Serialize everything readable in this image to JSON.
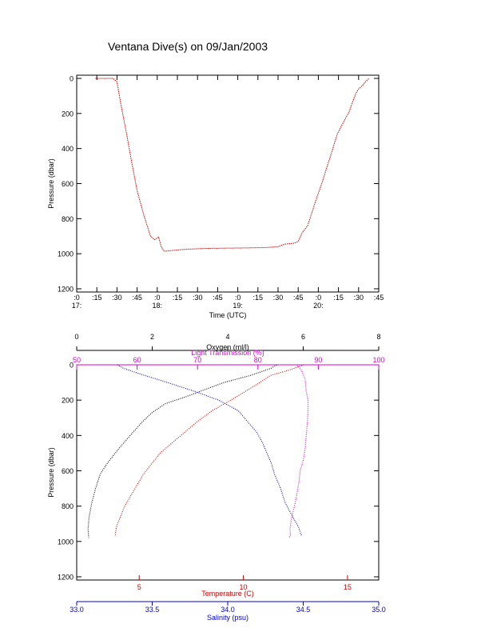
{
  "title": "Ventana Dive(s) on 09/Jan/2003",
  "colors": {
    "axis": "#000000",
    "temperature": "#d00000",
    "salinity": "#0000cc",
    "oxygen": "#000000",
    "light_transmission": "#dd00dd",
    "pressure_trace": "#cc0000"
  },
  "chart_data": [
    {
      "type": "line",
      "title": "Ventana Dive(s) on 09/Jan/2003",
      "xlabel": "Time (UTC)",
      "ylabel": "Pressure (dbar)",
      "x_unit": "minutes since 17:00 UTC",
      "xlim": [
        0,
        225
      ],
      "ylim": [
        1200,
        0
      ],
      "x_ticks": [
        0,
        15,
        30,
        45,
        60,
        75,
        90,
        105,
        120,
        135,
        150,
        165,
        180,
        195,
        210,
        225
      ],
      "x_tick_labels": [
        ":0",
        ":15",
        ":30",
        ":45",
        ":0",
        ":15",
        ":30",
        ":45",
        ":0",
        ":15",
        ":30",
        ":45",
        ":0",
        ":15",
        ":30",
        ":45"
      ],
      "x_hour_labels": [
        {
          "x": 0,
          "label": "17:"
        },
        {
          "x": 60,
          "label": "18:"
        },
        {
          "x": 120,
          "label": "19:"
        },
        {
          "x": 180,
          "label": "20:"
        }
      ],
      "y_ticks": [
        0,
        200,
        400,
        600,
        800,
        1000,
        1200
      ],
      "series": [
        {
          "x": [
            14,
            27,
            30,
            33,
            37,
            41,
            45,
            50,
            55,
            58,
            61,
            63,
            65,
            67,
            70,
            80,
            95,
            110,
            125,
            140,
            150,
            155,
            162,
            165,
            168,
            172,
            178,
            183,
            187,
            190,
            194,
            198,
            203,
            206,
            208,
            210,
            213,
            215,
            217,
            218
          ],
          "y": [
            0,
            0,
            20,
            150,
            310,
            480,
            640,
            780,
            900,
            920,
            905,
            960,
            985,
            985,
            982,
            975,
            970,
            968,
            967,
            965,
            960,
            945,
            940,
            930,
            880,
            840,
            700,
            590,
            490,
            420,
            320,
            260,
            190,
            125,
            85,
            60,
            40,
            20,
            5,
            0
          ]
        }
      ]
    },
    {
      "type": "scatter",
      "ylabel": "Pressure (dbar)",
      "ylim": [
        1200,
        0
      ],
      "y_ticks": [
        0,
        200,
        400,
        600,
        800,
        1000,
        1200
      ],
      "axes": {
        "oxygen": {
          "label": "Oxygen (ml/l)",
          "lim": [
            0,
            8
          ],
          "ticks": [
            0,
            2,
            4,
            6,
            8
          ],
          "position": "top-outer"
        },
        "light_transmission": {
          "label": "Light Transmission (%)",
          "lim": [
            50,
            100
          ],
          "ticks": [
            50,
            60,
            70,
            80,
            90,
            100
          ],
          "position": "top-inner"
        },
        "temperature": {
          "label": "Temperature (C)",
          "lim": [
            2,
            16.5
          ],
          "ticks": [
            5,
            10,
            15
          ],
          "position": "bottom-inner"
        },
        "salinity": {
          "label": "Salinity (psu)",
          "lim": [
            33.0,
            35.0
          ],
          "ticks": [
            33.0,
            33.5,
            34.0,
            34.5,
            35.0
          ],
          "tick_labels": [
            "33.0",
            "33.5",
            "34.0",
            "34.5",
            "35.0"
          ],
          "position": "bottom-outer"
        }
      },
      "series": [
        {
          "name": "Oxygen",
          "axis": "oxygen",
          "pressure": [
            0,
            20,
            60,
            100,
            140,
            180,
            220,
            270,
            320,
            380,
            440,
            500,
            560,
            620,
            700,
            780,
            860,
            930,
            980
          ],
          "value": [
            5.3,
            5.15,
            4.6,
            3.9,
            3.4,
            2.9,
            2.35,
            2.0,
            1.75,
            1.5,
            1.25,
            1.02,
            0.8,
            0.62,
            0.5,
            0.4,
            0.33,
            0.3,
            0.32
          ]
        },
        {
          "name": "Light Transmission",
          "axis": "light_transmission",
          "pressure": [
            0,
            30,
            80,
            150,
            200,
            260,
            320,
            400,
            480,
            540,
            600,
            660,
            700,
            760,
            820,
            880,
            930,
            960,
            980
          ],
          "value": [
            86.5,
            87.2,
            87.8,
            88.0,
            88.3,
            88.3,
            88.2,
            88.0,
            87.8,
            87.5,
            87.0,
            86.8,
            86.6,
            86.3,
            85.9,
            85.5,
            85.3,
            85.4,
            85.2
          ]
        },
        {
          "name": "Temperature",
          "axis": "temperature",
          "pressure": [
            0,
            30,
            60,
            100,
            150,
            200,
            260,
            320,
            380,
            440,
            500,
            560,
            620,
            680,
            740,
            800,
            860,
            920,
            970
          ],
          "value": [
            12.9,
            12.2,
            11.3,
            10.8,
            10.1,
            9.4,
            8.5,
            7.8,
            7.2,
            6.6,
            6.0,
            5.6,
            5.2,
            4.9,
            4.6,
            4.3,
            4.1,
            3.9,
            3.85
          ]
        },
        {
          "name": "Salinity",
          "axis": "salinity",
          "pressure": [
            0,
            20,
            60,
            100,
            150,
            200,
            260,
            320,
            380,
            440,
            500,
            560,
            620,
            700,
            780,
            860,
            920,
            970
          ],
          "value": [
            33.27,
            33.31,
            33.45,
            33.6,
            33.78,
            33.94,
            34.07,
            34.13,
            34.19,
            34.23,
            34.26,
            34.29,
            34.31,
            34.35,
            34.38,
            34.43,
            34.47,
            34.49
          ]
        }
      ]
    }
  ]
}
